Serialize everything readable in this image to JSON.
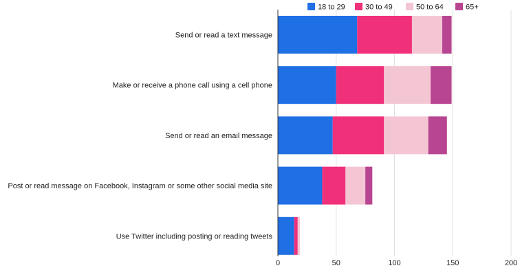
{
  "chart_data": {
    "type": "bar",
    "orientation": "horizontal",
    "stacked": true,
    "title": "",
    "xlabel": "",
    "ylabel": "",
    "xlim": [
      0,
      200
    ],
    "xticks": [
      "0",
      "50",
      "100",
      "150",
      "200"
    ],
    "grid": true,
    "legend_position": "top-right",
    "categories": [
      "Send or read a text message",
      "Make or receive a phone call using a cell phone",
      "Send or read an email message",
      "Post or read message on Facebook, Instagram or some other social media site",
      "Use Twitter including posting or reading tweets"
    ],
    "series": [
      {
        "name": "18 to 29",
        "color": "#1f6fe5",
        "values": [
          68,
          50,
          47,
          38,
          14
        ]
      },
      {
        "name": "30 to 49",
        "color": "#f0317a",
        "values": [
          47,
          41,
          44,
          20,
          3
        ]
      },
      {
        "name": "50 to 64",
        "color": "#f4c6d4",
        "values": [
          26,
          40,
          38,
          17,
          2
        ]
      },
      {
        "name": "65+",
        "color": "#b84591",
        "values": [
          8,
          18,
          16,
          6,
          0
        ]
      }
    ]
  }
}
